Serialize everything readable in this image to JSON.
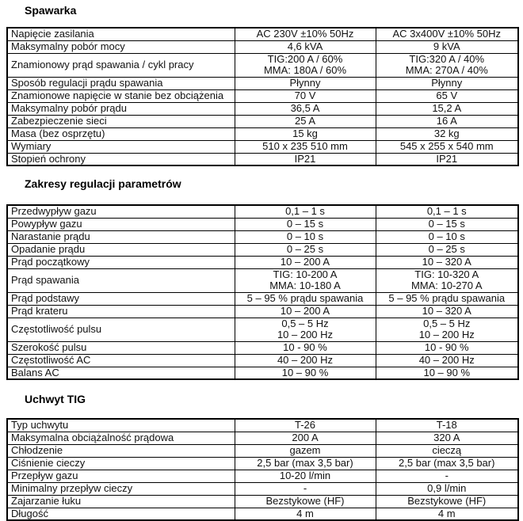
{
  "page": {
    "background_color": "#ffffff",
    "text_color": "#111111",
    "border_color": "#000000"
  },
  "sections": [
    {
      "heading": "Spawarka",
      "rows": [
        {
          "label": "Napięcie zasilania",
          "col1": "AC 230V ±10% 50Hz",
          "col2": "AC 3x400V ±10% 50Hz"
        },
        {
          "label": "Maksymalny pobór mocy",
          "col1": "4,6 kVA",
          "col2": "9 kVA"
        },
        {
          "label": "Znamionowy prąd spawania / cykl pracy",
          "col1": "TIG:200 A / 60%\nMMA: 180A / 60%",
          "col2": "TIG:320 A / 40%\nMMA: 270A / 40%"
        },
        {
          "label": "Sposób regulacji prądu spawania",
          "col1": "Płynny",
          "col2": "Płynny"
        },
        {
          "label": "Znamionowe napięcie w stanie bez obciążenia",
          "col1": "70 V",
          "col2": "65 V"
        },
        {
          "label": "Maksymalny pobór prądu",
          "col1": "36,5 A",
          "col2": "15,2 A"
        },
        {
          "label": "Zabezpieczenie sieci",
          "col1": "25 A",
          "col2": "16 A"
        },
        {
          "label": "Masa (bez osprzętu)",
          "col1": "15 kg",
          "col2": "32 kg"
        },
        {
          "label": "Wymiary",
          "col1": "510 x 235 510 mm",
          "col2": "545 x 255 x 540 mm"
        },
        {
          "label": "Stopień ochrony",
          "col1": "IP21",
          "col2": "IP21"
        }
      ]
    },
    {
      "heading": "Zakresy regulacji parametrów",
      "rows": [
        {
          "label": "Przedwypływ gazu",
          "col1": "0,1 – 1 s",
          "col2": "0,1 – 1 s"
        },
        {
          "label": "Powypływ gazu",
          "col1": "0 – 15 s",
          "col2": "0 – 15 s"
        },
        {
          "label": "Narastanie prądu",
          "col1": "0 – 10 s",
          "col2": "0 – 10 s"
        },
        {
          "label": "Opadanie prądu",
          "col1": "0 – 25 s",
          "col2": "0 – 25 s"
        },
        {
          "label": "Prąd początkowy",
          "col1": "10 – 200 A",
          "col2": "10 – 320 A"
        },
        {
          "label": "Prąd spawania",
          "col1": "TIG: 10-200 A\nMMA: 10-180 A",
          "col2": "TIG: 10-320 A\nMMA: 10-270 A"
        },
        {
          "label": "Prąd podstawy",
          "col1": "5 – 95 % prądu spawania",
          "col2": "5 – 95 % prądu spawania"
        },
        {
          "label": "Prąd krateru",
          "col1": "10 – 200 A",
          "col2": "10 – 320 A"
        },
        {
          "label": "Częstotliwość pulsu",
          "col1": "0,5 – 5 Hz\n10 – 200 Hz",
          "col2": "0,5 – 5 Hz\n10 – 200 Hz"
        },
        {
          "label": "Szerokość pulsu",
          "col1": "10 - 90 %",
          "col2": "10 - 90 %"
        },
        {
          "label": "Częstotliwość AC",
          "col1": "40 – 200 Hz",
          "col2": "40 – 200 Hz"
        },
        {
          "label": "Balans AC",
          "col1": "10 – 90 %",
          "col2": "10 – 90 %"
        }
      ]
    },
    {
      "heading": "Uchwyt TIG",
      "rows": [
        {
          "label": "Typ uchwytu",
          "col1": "T-26",
          "col2": "T-18"
        },
        {
          "label": "Maksymalna obciążalność prądowa",
          "col1": "200 A",
          "col2": "320 A"
        },
        {
          "label": "Chłodzenie",
          "col1": "gazem",
          "col2": "cieczą"
        },
        {
          "label": "Ciśnienie cieczy",
          "col1": "2,5 bar (max 3,5 bar)",
          "col2": "2,5 bar (max 3,5 bar)"
        },
        {
          "label": "Przepływ gazu",
          "col1": "10-20 l/min",
          "col2": "-"
        },
        {
          "label": "Minimalny przepływ cieczy",
          "col1": "-",
          "col2": "0,9 l/min"
        },
        {
          "label": "Zajarzanie łuku",
          "col1": "Bezstykowe (HF)",
          "col2": "Bezstykowe (HF)"
        },
        {
          "label": "Długość",
          "col1": "4 m",
          "col2": "4 m"
        }
      ]
    }
  ]
}
